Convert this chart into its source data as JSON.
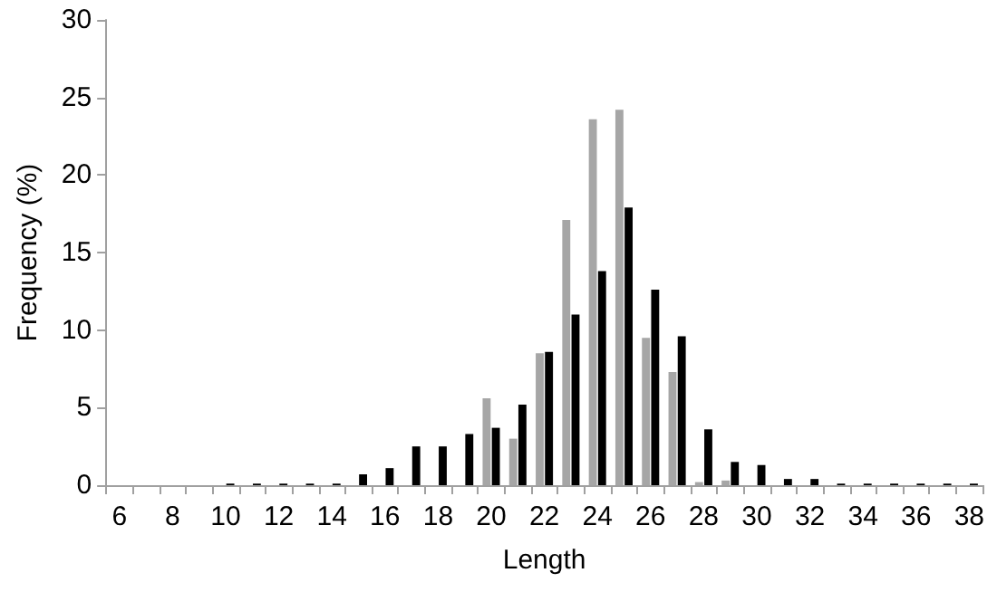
{
  "chart_data": {
    "type": "bar",
    "xlabel": "Length",
    "ylabel": "Frequency (%)",
    "categories": [
      "6",
      null,
      "8",
      null,
      "10",
      null,
      "12",
      null,
      "14",
      null,
      "16",
      null,
      "18",
      null,
      "20",
      null,
      "22",
      null,
      "24",
      null,
      "26",
      null,
      "28",
      null,
      "30",
      null,
      "32",
      null,
      "34",
      null,
      "36",
      null,
      "38"
    ],
    "series": [
      {
        "color": "#a6a6a6",
        "values": [
          0,
          0,
          0,
          0,
          0,
          0,
          0,
          0,
          0,
          0,
          0,
          0,
          0,
          0,
          5.6,
          3.0,
          8.5,
          17.1,
          23.6,
          24.2,
          9.5,
          7.3,
          0.2,
          0.3,
          0,
          0,
          0,
          0,
          0,
          0,
          0,
          0,
          0
        ]
      },
      {
        "color": "#000000",
        "values": [
          0,
          0,
          0,
          0,
          0.1,
          0.1,
          0.1,
          0.1,
          0.1,
          0.7,
          1.1,
          2.5,
          2.5,
          3.3,
          3.7,
          5.2,
          8.6,
          11.0,
          13.8,
          17.9,
          12.6,
          9.6,
          3.6,
          1.5,
          1.3,
          0.4,
          0.4,
          0.1,
          0.1,
          0.1,
          0.1,
          0.1,
          0.1
        ]
      }
    ],
    "ylim": [
      0,
      30
    ],
    "yticks": [
      0,
      5,
      10,
      15,
      20,
      25,
      30
    ],
    "grid": false
  }
}
